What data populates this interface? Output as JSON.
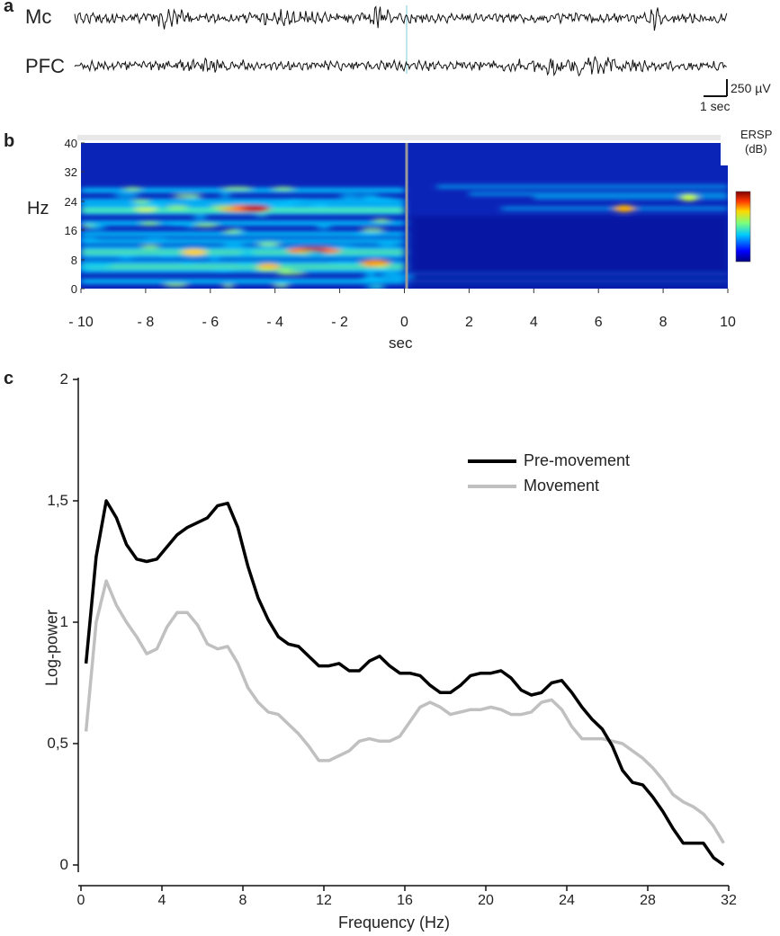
{
  "panels": {
    "a": "a",
    "b": "b",
    "c": "c"
  },
  "eeg": {
    "channels": [
      "Mc",
      "PFC"
    ],
    "scalebar": {
      "amplitude": "250 µV",
      "time": "1 sec"
    }
  },
  "spectrogram": {
    "ylabel": "Hz",
    "xlabel": "sec",
    "y_ticks": [
      "40",
      "32",
      "24",
      "16",
      "8",
      "0"
    ],
    "x_ticks": [
      "- 10",
      "- 8",
      "- 6",
      "- 4",
      "- 2",
      "0",
      "2",
      "4",
      "6",
      "8",
      "10"
    ],
    "colorbar_title_1": "ERSP",
    "colorbar_title_2": "(dB)",
    "colors": {
      "low": "#00007f",
      "mid": "#00c8ff",
      "high": "#c80000"
    }
  },
  "chart_data": {
    "type": "line",
    "xlabel": "Frequency (Hz)",
    "ylabel": "Log-power",
    "xlim": [
      0,
      32
    ],
    "ylim": [
      0,
      2
    ],
    "x_ticks": [
      "0",
      "4",
      "8",
      "12",
      "16",
      "20",
      "24",
      "28",
      "32"
    ],
    "y_ticks": [
      "0",
      "0,5",
      "1",
      "1,5",
      "2"
    ],
    "legend_position": "top-right",
    "x": [
      0.25,
      0.75,
      1.25,
      1.75,
      2.25,
      2.75,
      3.25,
      3.75,
      4.25,
      4.75,
      5.25,
      5.75,
      6.25,
      6.75,
      7.25,
      7.75,
      8.25,
      8.75,
      9.25,
      9.75,
      10.25,
      10.75,
      11.25,
      11.75,
      12.25,
      12.75,
      13.25,
      13.75,
      14.25,
      14.75,
      15.25,
      15.75,
      16.25,
      16.75,
      17.25,
      17.75,
      18.25,
      18.75,
      19.25,
      19.75,
      20.25,
      20.75,
      21.25,
      21.75,
      22.25,
      22.75,
      23.25,
      23.75,
      24.25,
      24.75,
      25.25,
      25.75,
      26.25,
      26.75,
      27.25,
      27.75,
      28.25,
      28.75,
      29.25,
      29.75,
      30.25,
      30.75,
      31.25,
      31.75
    ],
    "series": [
      {
        "name": "Pre-movement",
        "color": "#000000",
        "values": [
          0.83,
          1.27,
          1.5,
          1.43,
          1.32,
          1.26,
          1.25,
          1.26,
          1.31,
          1.36,
          1.39,
          1.41,
          1.43,
          1.48,
          1.49,
          1.39,
          1.23,
          1.1,
          1.01,
          0.94,
          0.91,
          0.9,
          0.86,
          0.82,
          0.82,
          0.83,
          0.8,
          0.8,
          0.84,
          0.86,
          0.82,
          0.79,
          0.79,
          0.78,
          0.74,
          0.71,
          0.71,
          0.74,
          0.78,
          0.79,
          0.79,
          0.8,
          0.77,
          0.72,
          0.7,
          0.71,
          0.75,
          0.76,
          0.71,
          0.65,
          0.6,
          0.56,
          0.49,
          0.39,
          0.34,
          0.33,
          0.28,
          0.22,
          0.15,
          0.09,
          0.09,
          0.09,
          0.03,
          0.0
        ]
      },
      {
        "name": "Movement",
        "color": "#c0c0c0",
        "values": [
          0.55,
          1.0,
          1.17,
          1.07,
          1.0,
          0.94,
          0.87,
          0.89,
          0.98,
          1.04,
          1.04,
          0.99,
          0.91,
          0.89,
          0.9,
          0.83,
          0.73,
          0.67,
          0.63,
          0.62,
          0.58,
          0.54,
          0.49,
          0.43,
          0.43,
          0.45,
          0.47,
          0.51,
          0.52,
          0.51,
          0.51,
          0.53,
          0.59,
          0.65,
          0.67,
          0.65,
          0.62,
          0.63,
          0.64,
          0.64,
          0.65,
          0.64,
          0.62,
          0.62,
          0.63,
          0.67,
          0.68,
          0.64,
          0.57,
          0.52,
          0.52,
          0.52,
          0.51,
          0.5,
          0.47,
          0.44,
          0.4,
          0.35,
          0.29,
          0.26,
          0.24,
          0.21,
          0.16,
          0.09
        ]
      }
    ]
  }
}
